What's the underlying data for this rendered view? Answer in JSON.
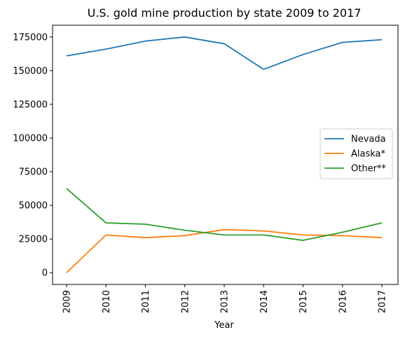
{
  "chart_data": {
    "type": "line",
    "title": "U.S. gold mine production by state 2009 to 2017",
    "xlabel": "Year",
    "ylabel": "",
    "categories": [
      "2009",
      "2010",
      "2011",
      "2012",
      "2013",
      "2014",
      "2015",
      "2016",
      "2017"
    ],
    "ylim": [
      -8750,
      183750
    ],
    "yticks": [
      0,
      25000,
      50000,
      75000,
      100000,
      125000,
      150000,
      175000
    ],
    "grid": false,
    "legend_position": "center-right",
    "series": [
      {
        "name": "Nevada",
        "color": "#1f77b4",
        "values": [
          161000,
          166000,
          172000,
          175000,
          170000,
          151000,
          162000,
          171000,
          173000
        ]
      },
      {
        "name": "Alaska*",
        "color": "#ff7f0e",
        "values": [
          0,
          28000,
          26000,
          27500,
          32000,
          31000,
          28000,
          27500,
          26000
        ]
      },
      {
        "name": "Other**",
        "color": "#2ca02c",
        "values": [
          62500,
          37000,
          36000,
          31500,
          28000,
          28000,
          24000,
          30000,
          37000
        ]
      }
    ]
  }
}
